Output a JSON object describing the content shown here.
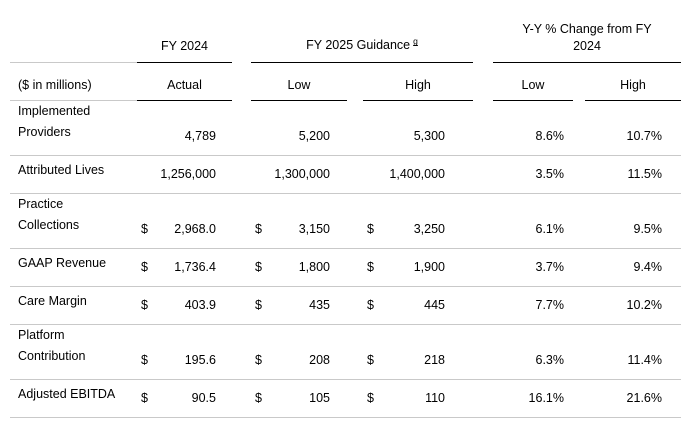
{
  "page": {
    "background_color": "#ffffff",
    "colors": {
      "text": "#000000",
      "rule_dark": "#000000",
      "rule_light": "#c9c9c9"
    }
  },
  "table": {
    "currency_symbol": "$",
    "unit_label": "($ in millions)",
    "col_groups": {
      "fy2024": "FY 2024",
      "fy2025": "FY 2025 Guidance",
      "fy2025_footnote": "g",
      "yy_change": "Y-Y % Change from FY 2024"
    },
    "sub_headers": {
      "actual": "Actual",
      "guidance_low": "Low",
      "guidance_high": "High",
      "yy_low": "Low",
      "yy_high": "High"
    },
    "rows": [
      {
        "label": "Implemented\nProviders",
        "actual": "4,789",
        "low": "5,200",
        "high": "5,300",
        "yy_low": "8.6%",
        "yy_high": "10.7%"
      },
      {
        "label": "Attributed Lives",
        "actual": "1,256,000",
        "low": "1,300,000",
        "high": "1,400,000",
        "yy_low": "3.5%",
        "yy_high": "11.5%"
      },
      {
        "label": "Practice\nCollections",
        "actual": "2,968.0",
        "low": "3,150",
        "high": "3,250",
        "yy_low": "6.1%",
        "yy_high": "9.5%"
      },
      {
        "label": "GAAP Revenue",
        "actual": "1,736.4",
        "low": "1,800",
        "high": "1,900",
        "yy_low": "3.7%",
        "yy_high": "9.4%"
      },
      {
        "label": "Care Margin",
        "actual": "403.9",
        "low": "435",
        "high": "445",
        "yy_low": "7.7%",
        "yy_high": "10.2%"
      },
      {
        "label": "Platform\nContribution",
        "actual": "195.6",
        "low": "208",
        "high": "218",
        "yy_low": "6.3%",
        "yy_high": "11.4%"
      },
      {
        "label": "Adjusted EBITDA",
        "actual": "90.5",
        "low": "105",
        "high": "110",
        "yy_low": "16.1%",
        "yy_high": "21.6%"
      }
    ]
  }
}
